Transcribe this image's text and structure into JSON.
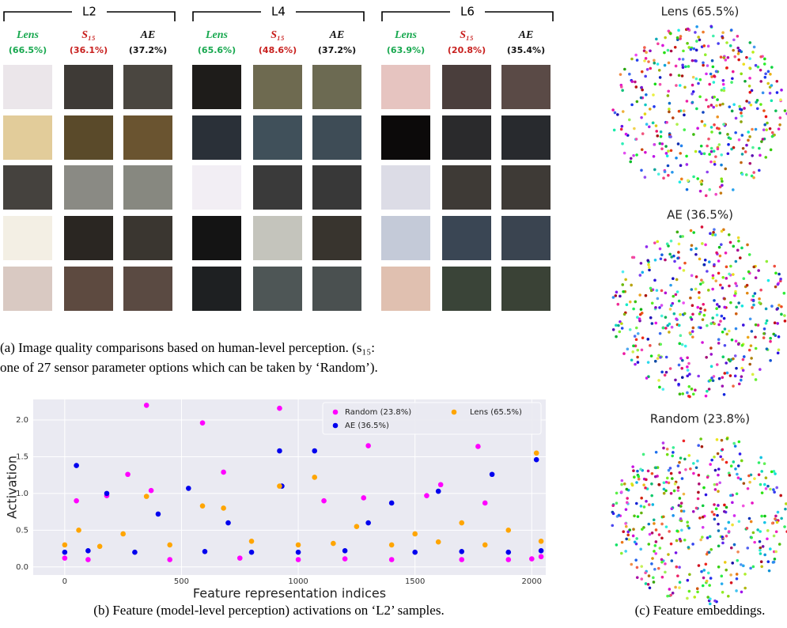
{
  "panel_a": {
    "groups": [
      {
        "label": "L2",
        "columns": [
          {
            "name": "Lens",
            "score": "(66.5%)"
          },
          {
            "name": "S₁₅",
            "score": "(36.1%)"
          },
          {
            "name": "AE",
            "score": "(37.2%)"
          }
        ]
      },
      {
        "label": "L4",
        "columns": [
          {
            "name": "Lens",
            "score": "(65.6%)"
          },
          {
            "name": "S₁₅",
            "score": "(48.6%)"
          },
          {
            "name": "AE",
            "score": "(37.2%)"
          }
        ]
      },
      {
        "label": "L6",
        "columns": [
          {
            "name": "Lens",
            "score": "(63.9%)"
          },
          {
            "name": "S₁₅",
            "score": "(20.8%)"
          },
          {
            "name": "AE",
            "score": "(35.4%)"
          }
        ]
      }
    ],
    "caption": [
      "(a) Image quality comparisons based on human-level perception. (s₁₅:",
      "one of 27 sensor parameter options which can be taken by ‘Random’)."
    ]
  },
  "chart_data": {
    "type": "scatter",
    "x_label": "Feature representation indices",
    "y_label": "Activation",
    "caption": "(b) Feature (model-level perception) activations on ‘L2’ samples.",
    "xlim": [
      -135,
      2060
    ],
    "ylim": [
      -0.11,
      2.28
    ],
    "xticks": [
      0,
      500,
      1000,
      1500,
      2000
    ],
    "yticks": [
      {
        "value": 0,
        "label": "0.0"
      },
      0.5,
      {
        "value": 1,
        "label": "1.0"
      },
      1.5,
      {
        "value": 2,
        "label": "2.0"
      }
    ],
    "grid": true,
    "legend": "upper-right",
    "series": [
      {
        "name": "Random (23.8%)",
        "color": "#ff00ff",
        "x": [
          0,
          50,
          100,
          180,
          270,
          350,
          370,
          450,
          590,
          680,
          750,
          920,
          1000,
          1110,
          1200,
          1280,
          1300,
          1400,
          1550,
          1610,
          1700,
          1770,
          1800,
          1900,
          2000,
          2040
        ],
        "values": [
          0.12,
          0.9,
          0.1,
          0.97,
          1.26,
          2.2,
          1.04,
          0.1,
          1.96,
          1.29,
          0.12,
          2.16,
          0.1,
          0.9,
          0.11,
          0.94,
          1.65,
          0.1,
          0.97,
          1.12,
          0.1,
          1.64,
          0.87,
          0.1,
          0.11,
          0.14
        ]
      },
      {
        "name": "AE (36.5%)",
        "color": "#0000ee",
        "x": [
          0,
          50,
          100,
          180,
          300,
          400,
          530,
          600,
          700,
          800,
          920,
          930,
          1000,
          1070,
          1200,
          1300,
          1400,
          1500,
          1600,
          1700,
          1830,
          1900,
          2020,
          2040
        ],
        "values": [
          0.2,
          1.38,
          0.22,
          1.0,
          0.2,
          0.72,
          1.07,
          0.21,
          0.6,
          0.2,
          1.58,
          1.1,
          0.2,
          1.58,
          0.22,
          0.6,
          0.87,
          0.2,
          1.03,
          0.21,
          1.26,
          0.2,
          1.46,
          0.22
        ]
      },
      {
        "name": "Lens (65.5%)",
        "color": "#ffa500",
        "x": [
          0,
          60,
          150,
          250,
          350,
          450,
          590,
          680,
          800,
          920,
          1000,
          1070,
          1150,
          1250,
          1400,
          1500,
          1600,
          1700,
          1800,
          1900,
          2020,
          2040
        ],
        "values": [
          0.3,
          0.5,
          0.28,
          0.45,
          0.96,
          0.3,
          0.83,
          0.8,
          0.35,
          1.1,
          0.3,
          1.22,
          0.32,
          0.55,
          0.3,
          0.45,
          0.34,
          0.6,
          0.3,
          0.5,
          1.55,
          0.35
        ]
      }
    ]
  },
  "panel_c": {
    "plots": [
      {
        "title": "Lens (65.5%)"
      },
      {
        "title": "AE (36.5%)"
      },
      {
        "title": "Random (23.8%)"
      }
    ],
    "caption": "(c) Feature embeddings."
  }
}
